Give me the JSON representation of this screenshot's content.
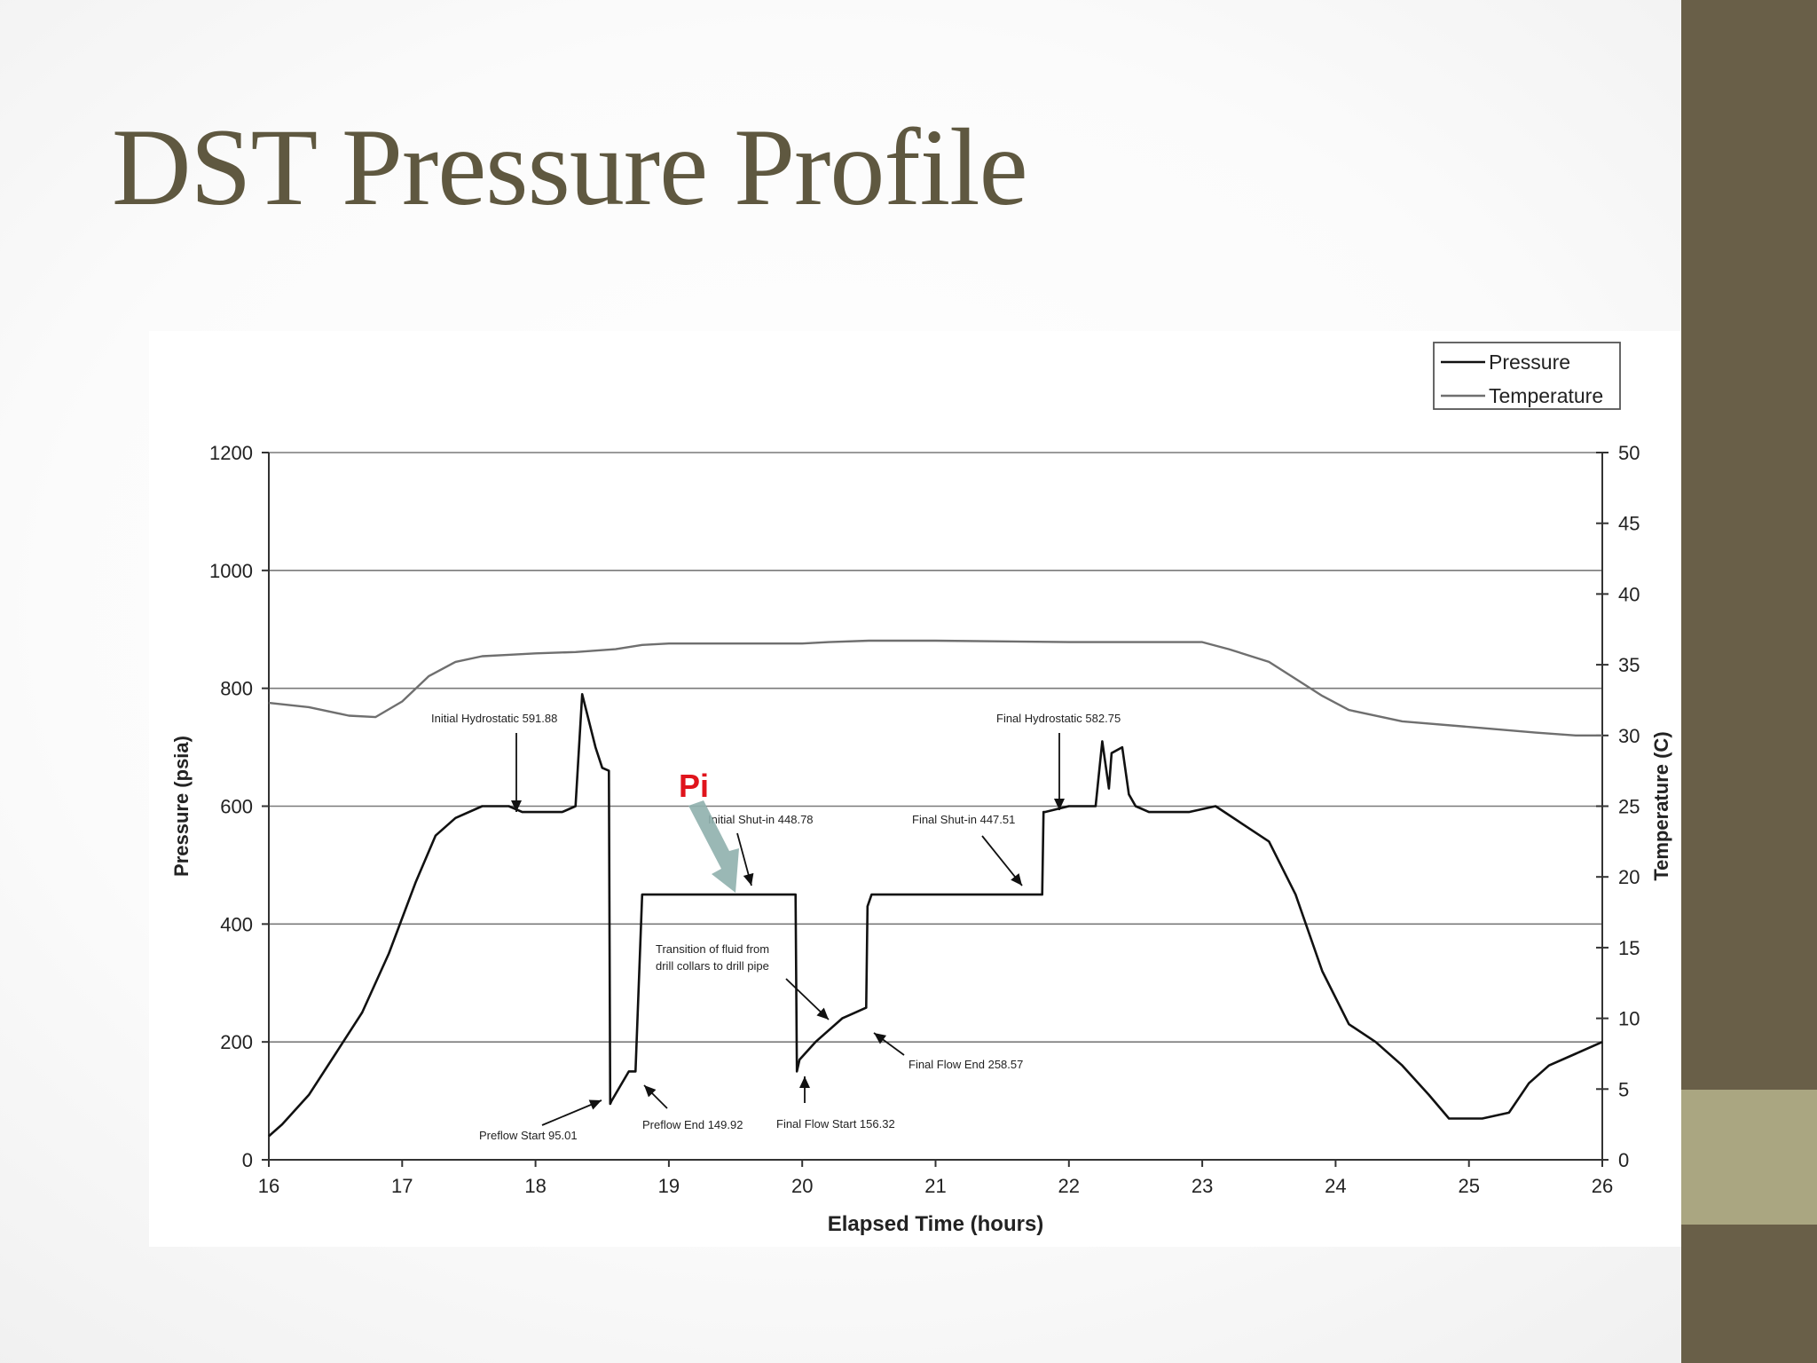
{
  "slide": {
    "title": "DST Pressure Profile"
  },
  "colors": {
    "title": "#5f5840",
    "sidebar": "#695f48",
    "sidebar_accent": "#aaa681",
    "pressure": "#111111",
    "temperature": "#6f6f6f",
    "pi_label": "#e0141c",
    "pi_arrow": "#8fb0ad"
  },
  "chart_data": {
    "type": "line",
    "xlabel": "Elapsed Time (hours)",
    "ylabel": "Pressure (psia)",
    "y2label": "Temperature (C)",
    "xlim": [
      16,
      26
    ],
    "ylim": [
      0,
      1200
    ],
    "y2lim": [
      0,
      50
    ],
    "xticks": [
      16,
      17,
      18,
      19,
      20,
      21,
      22,
      23,
      24,
      25,
      26
    ],
    "yticks": [
      0,
      200,
      400,
      600,
      800,
      1000,
      1200
    ],
    "y2ticks": [
      0,
      5,
      10,
      15,
      20,
      25,
      30,
      35,
      40,
      45,
      50
    ],
    "grid": "horizontal",
    "legend": {
      "position": "top-right",
      "entries": [
        "Pressure",
        "Temperature"
      ]
    },
    "series": [
      {
        "name": "Pressure",
        "axis": "left",
        "x": [
          16.0,
          16.1,
          16.3,
          16.5,
          16.7,
          16.9,
          17.1,
          17.25,
          17.4,
          17.6,
          17.8,
          17.9,
          18.0,
          18.2,
          18.3,
          18.35,
          18.45,
          18.5,
          18.55,
          18.56,
          18.57,
          18.7,
          18.75,
          18.8,
          18.85,
          19.0,
          19.5,
          19.9,
          19.95,
          19.96,
          19.98,
          20.1,
          20.3,
          20.48,
          20.49,
          20.52,
          20.6,
          21.0,
          21.5,
          21.8,
          21.81,
          21.82,
          22.0,
          22.2,
          22.25,
          22.3,
          22.32,
          22.4,
          22.45,
          22.5,
          22.6,
          22.9,
          23.1,
          23.3,
          23.5,
          23.7,
          23.9,
          24.1,
          24.3,
          24.5,
          24.7,
          24.85,
          25.0,
          25.1,
          25.3,
          25.45,
          25.6,
          25.8,
          26.0
        ],
        "y": [
          40,
          60,
          110,
          180,
          250,
          350,
          470,
          550,
          580,
          600,
          600,
          590,
          590,
          590,
          600,
          790,
          700,
          665,
          660,
          95,
          100,
          150,
          150,
          450,
          450,
          450,
          450,
          450,
          450,
          150,
          170,
          200,
          240,
          258,
          430,
          450,
          450,
          450,
          450,
          450,
          590,
          590,
          600,
          600,
          710,
          630,
          690,
          700,
          620,
          600,
          590,
          590,
          600,
          570,
          540,
          450,
          320,
          230,
          200,
          160,
          110,
          70,
          70,
          70,
          80,
          130,
          160,
          180,
          200
        ]
      },
      {
        "name": "Temperature",
        "axis": "right",
        "x": [
          16.0,
          16.3,
          16.6,
          16.8,
          17.0,
          17.2,
          17.4,
          17.6,
          17.8,
          18.0,
          18.3,
          18.6,
          18.8,
          19.0,
          20.0,
          20.2,
          20.5,
          21.0,
          22.0,
          23.0,
          23.2,
          23.5,
          23.7,
          23.9,
          24.1,
          24.5,
          25.0,
          25.5,
          25.8,
          26.0
        ],
        "y": [
          32.3,
          32.0,
          31.4,
          31.3,
          32.4,
          34.2,
          35.2,
          35.6,
          35.7,
          35.8,
          35.9,
          36.1,
          36.4,
          36.5,
          36.5,
          36.6,
          36.7,
          36.7,
          36.6,
          36.6,
          36.1,
          35.2,
          34.0,
          32.8,
          31.8,
          31.0,
          30.6,
          30.2,
          30.0,
          30.0
        ]
      }
    ],
    "annotations": [
      {
        "text": "Initial Hydrostatic 591.88",
        "x": 17.85,
        "y": 591.88
      },
      {
        "text": "Initial Shut-in 448.78",
        "x": 19.85,
        "y": 448.78
      },
      {
        "text": "Final Shut-in 447.51",
        "x": 21.65,
        "y": 447.51
      },
      {
        "text": "Final Hydrostatic 582.75",
        "x": 21.95,
        "y": 582.75
      },
      {
        "text": "Preflow Start 95.01",
        "x": 18.5,
        "y": 95.01
      },
      {
        "text": "Preflow End 149.92",
        "x": 18.7,
        "y": 149.92
      },
      {
        "text": "Final Flow Start 156.32",
        "x": 20.0,
        "y": 156.32
      },
      {
        "text": "Final Flow End 258.57",
        "x": 20.5,
        "y": 258.57
      },
      {
        "text": "Transition of fluid from",
        "text2": "drill collars to drill pipe",
        "x": 20.2,
        "y": 235
      },
      {
        "text": "Pi",
        "x": 19.5,
        "y": 450
      }
    ]
  }
}
